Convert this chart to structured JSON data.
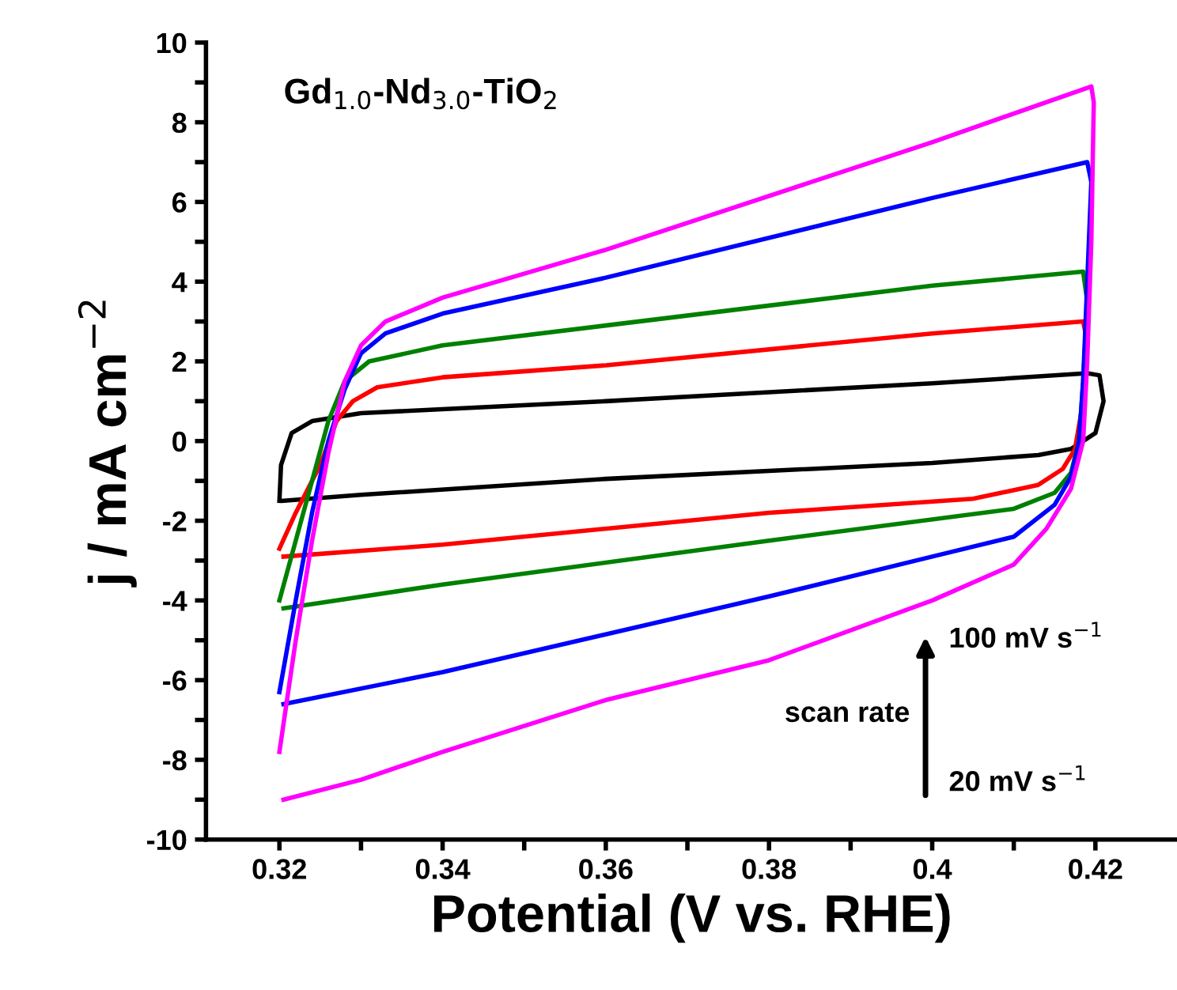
{
  "chart_data": {
    "type": "line",
    "xlabel": "Potential (V vs. RHE)",
    "ylabel": "j / mA cm$^{−2}$",
    "xlim": [
      0.311,
      0.43
    ],
    "ylim": [
      -10,
      10
    ],
    "xticks": [
      0.32,
      {
        "value": 0.33,
        "label": null
      },
      0.34,
      {
        "value": 0.35,
        "label": null
      },
      0.36,
      {
        "value": 0.37,
        "label": null
      },
      0.38,
      {
        "value": 0.39,
        "label": null
      },
      0.4,
      {
        "value": 0.41,
        "label": null
      },
      0.42
    ],
    "yticks": [
      -10,
      {
        "value": -9,
        "label": null
      },
      -8,
      {
        "value": -7,
        "label": null
      },
      -6,
      {
        "value": -5,
        "label": null
      },
      -4,
      {
        "value": -3,
        "label": null
      },
      -2,
      {
        "value": -1,
        "label": null
      },
      0,
      {
        "value": 1,
        "label": null
      },
      2,
      {
        "value": 3,
        "label": null
      },
      4,
      {
        "value": 5,
        "label": null
      },
      6,
      {
        "value": 7,
        "label": null
      },
      8,
      {
        "value": 9,
        "label": null
      },
      10
    ],
    "grid": false,
    "legend": false,
    "marker": "none",
    "line_style": "solid",
    "series": [
      {
        "color": "#000000",
        "x": [
          0.32,
          0.3202,
          0.3215,
          0.324,
          0.33,
          0.36,
          0.4,
          0.419,
          0.4205,
          0.421,
          0.42,
          0.417,
          0.413,
          0.4,
          0.36,
          0.33,
          0.3205
        ],
        "values": [
          -1.5,
          -0.6,
          0.2,
          0.5,
          0.7,
          1.0,
          1.45,
          1.7,
          1.65,
          1.0,
          0.2,
          -0.2,
          -0.35,
          -0.55,
          -0.95,
          -1.35,
          -1.5
        ]
      },
      {
        "color": "#ff0000",
        "x": [
          0.32,
          0.322,
          0.325,
          0.327,
          0.329,
          0.332,
          0.34,
          0.36,
          0.4,
          0.4185,
          0.419,
          0.4185,
          0.4175,
          0.416,
          0.413,
          0.405,
          0.38,
          0.34,
          0.3205
        ],
        "values": [
          -2.7,
          -1.8,
          -0.6,
          0.5,
          1.0,
          1.35,
          1.6,
          1.9,
          2.7,
          3.0,
          2.5,
          1.0,
          -0.2,
          -0.7,
          -1.1,
          -1.45,
          -1.8,
          -2.6,
          -2.9
        ]
      },
      {
        "color": "#008000",
        "x": [
          0.32,
          0.322,
          0.324,
          0.326,
          0.328,
          0.331,
          0.34,
          0.36,
          0.4,
          0.4185,
          0.419,
          0.4185,
          0.418,
          0.417,
          0.415,
          0.41,
          0.38,
          0.34,
          0.3205
        ],
        "values": [
          -4.0,
          -2.5,
          -1.0,
          0.5,
          1.5,
          2.0,
          2.4,
          2.9,
          3.9,
          4.25,
          3.5,
          1.5,
          0,
          -0.8,
          -1.3,
          -1.7,
          -2.5,
          -3.6,
          -4.2
        ]
      },
      {
        "color": "#0000ff",
        "x": [
          0.32,
          0.322,
          0.324,
          0.326,
          0.328,
          0.33,
          0.333,
          0.34,
          0.36,
          0.4,
          0.419,
          0.4195,
          0.419,
          0.4185,
          0.418,
          0.417,
          0.415,
          0.41,
          0.4,
          0.38,
          0.34,
          0.3205
        ],
        "values": [
          -6.3,
          -4.0,
          -1.8,
          0,
          1.3,
          2.2,
          2.7,
          3.2,
          4.1,
          6.1,
          7.0,
          6.5,
          4.0,
          1.5,
          0,
          -0.9,
          -1.6,
          -2.4,
          -2.9,
          -3.9,
          -5.8,
          -6.6
        ]
      },
      {
        "color": "#ff00ff",
        "x": [
          0.32,
          0.322,
          0.324,
          0.326,
          0.328,
          0.33,
          0.333,
          0.34,
          0.36,
          0.4,
          0.4195,
          0.4198,
          0.4195,
          0.419,
          0.4185,
          0.417,
          0.414,
          0.41,
          0.4,
          0.38,
          0.36,
          0.34,
          0.33,
          0.3205
        ],
        "values": [
          -7.8,
          -5.0,
          -2.5,
          -0.3,
          1.5,
          2.4,
          3.0,
          3.6,
          4.8,
          7.5,
          8.9,
          8.5,
          5.0,
          2.0,
          0,
          -1.2,
          -2.2,
          -3.1,
          -4.0,
          -5.5,
          -6.5,
          -7.8,
          -8.5,
          -9.0
        ]
      }
    ],
    "annotations": [
      "Gd$_{1.0}$-Nd$_{3.0}$-TiO$_{2}$",
      "scan rate",
      "100 mV s$^{−1}$",
      "20 mV s$^{−1}$"
    ]
  }
}
